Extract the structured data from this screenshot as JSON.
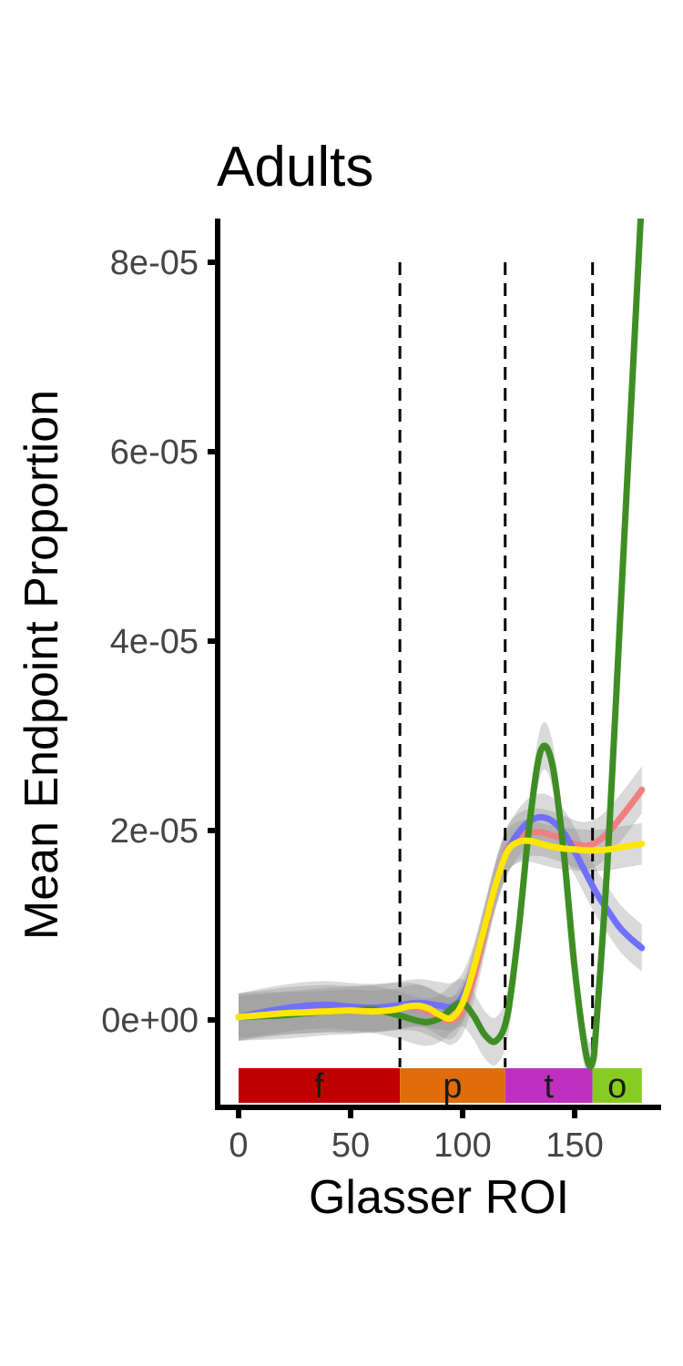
{
  "chart_data": {
    "type": "line",
    "title": "Adults",
    "xlabel": "Glasser ROI",
    "ylabel": "Mean Endpoint Proportion",
    "xlim": [
      -7,
      187
    ],
    "ylim": [
      -9.5e-06,
      8.45e-05
    ],
    "x_ticks": [
      {
        "value": 0,
        "label": "0"
      },
      {
        "value": 50,
        "label": "50"
      },
      {
        "value": 100,
        "label": "100"
      },
      {
        "value": 150,
        "label": "150"
      }
    ],
    "y_ticks": [
      {
        "value": 0,
        "label": "0e+00"
      },
      {
        "value": 2e-05,
        "label": "2e-05"
      },
      {
        "value": 4e-05,
        "label": "4e-05"
      },
      {
        "value": 6e-05,
        "label": "6e-05"
      },
      {
        "value": 8e-05,
        "label": "8e-05"
      }
    ],
    "grid": false,
    "legend": "none",
    "vlines": [
      {
        "x": 72,
        "style": "dashed"
      },
      {
        "x": 119,
        "style": "dashed"
      },
      {
        "x": 158,
        "style": "dashed"
      }
    ],
    "regions": [
      {
        "label": "f",
        "x0": 0,
        "x1": 72,
        "color": "#c00000"
      },
      {
        "label": "p",
        "x0": 72,
        "x1": 119,
        "color": "#e06c0a"
      },
      {
        "label": "t",
        "x0": 119,
        "x1": 158,
        "color": "#c030c0"
      },
      {
        "label": "o",
        "x0": 158,
        "x1": 180,
        "color": "#88cc22"
      }
    ],
    "series": [
      {
        "color": "#f08080",
        "band_width": 2.5e-06,
        "x": [
          0,
          10,
          20,
          30,
          40,
          50,
          60,
          70,
          80,
          90,
          95,
          100,
          105,
          110,
          115,
          120,
          125,
          130,
          135,
          140,
          145,
          150,
          155,
          160,
          165,
          170,
          175,
          180
        ],
        "y": [
          3e-07,
          6e-07,
          9e-07,
          1.1e-06,
          1.2e-06,
          1.1e-06,
          1.2e-06,
          1.4e-06,
          1.3e-06,
          3e-07,
          -1e-07,
          1e-06,
          4.5e-06,
          9.5e-06,
          1.45e-05,
          1.8e-05,
          1.93e-05,
          1.98e-05,
          1.98e-05,
          1.95e-05,
          1.91e-05,
          1.86e-05,
          1.84e-05,
          1.88e-05,
          1.98e-05,
          2.12e-05,
          2.27e-05,
          2.43e-05
        ]
      },
      {
        "color": "#7070ff",
        "band_width": 2.5e-06,
        "x": [
          0,
          10,
          20,
          30,
          40,
          50,
          60,
          70,
          80,
          90,
          95,
          100,
          105,
          110,
          115,
          120,
          125,
          130,
          135,
          140,
          145,
          150,
          155,
          160,
          165,
          170,
          175,
          180
        ],
        "y": [
          3e-07,
          8e-07,
          1.2e-06,
          1.5e-06,
          1.6e-06,
          1.4e-06,
          1.3e-06,
          1.5e-06,
          1.8e-06,
          1.5e-06,
          1.4e-06,
          2.5e-06,
          5.5e-06,
          1e-05,
          1.45e-05,
          1.78e-05,
          1.98e-05,
          2.1e-05,
          2.14e-05,
          2.1e-05,
          1.98e-05,
          1.78e-05,
          1.55e-05,
          1.33e-05,
          1.15e-05,
          9.8e-06,
          8.6e-06,
          7.6e-06
        ]
      },
      {
        "color": "#3e8e24",
        "band_width": 2.5e-06,
        "x": [
          0,
          10,
          20,
          30,
          40,
          50,
          60,
          70,
          80,
          85,
          90,
          95,
          100,
          105,
          110,
          115,
          120,
          125,
          130,
          135,
          140,
          145,
          150,
          155,
          158,
          160,
          165,
          170,
          175,
          180
        ],
        "y": [
          3e-07,
          4e-07,
          5e-07,
          7e-07,
          9e-07,
          1e-06,
          1.1e-06,
          6e-07,
          -1e-07,
          -2e-07,
          2e-07,
          1.2e-06,
          1.8e-06,
          4e-07,
          -1.6e-06,
          -2.2e-06,
          5e-07,
          9.5e-06,
          2.1e-05,
          2.85e-05,
          2.7e-05,
          1.8e-05,
          5.5e-06,
          -3.5e-06,
          -4.5e-06,
          5e-07,
          1.8e-05,
          4.1e-05,
          6.4e-05,
          8.7e-05
        ]
      },
      {
        "color": "#ffe600",
        "band_width": 2.2e-06,
        "x": [
          0,
          10,
          20,
          30,
          40,
          50,
          60,
          70,
          75,
          80,
          85,
          90,
          95,
          100,
          105,
          110,
          115,
          120,
          125,
          130,
          135,
          140,
          145,
          150,
          155,
          160,
          165,
          170,
          175,
          180
        ],
        "y": [
          3e-07,
          5e-07,
          7e-07,
          8e-07,
          9e-07,
          1e-06,
          9e-07,
          1.1e-06,
          1.4e-06,
          1.5e-06,
          1.2e-06,
          5e-07,
          2e-07,
          1.8e-06,
          5.5e-06,
          1e-05,
          1.45e-05,
          1.78e-05,
          1.88e-05,
          1.89e-05,
          1.86e-05,
          1.83e-05,
          1.81e-05,
          1.8e-05,
          1.79e-05,
          1.79e-05,
          1.8e-05,
          1.82e-05,
          1.84e-05,
          1.86e-05
        ]
      }
    ]
  }
}
